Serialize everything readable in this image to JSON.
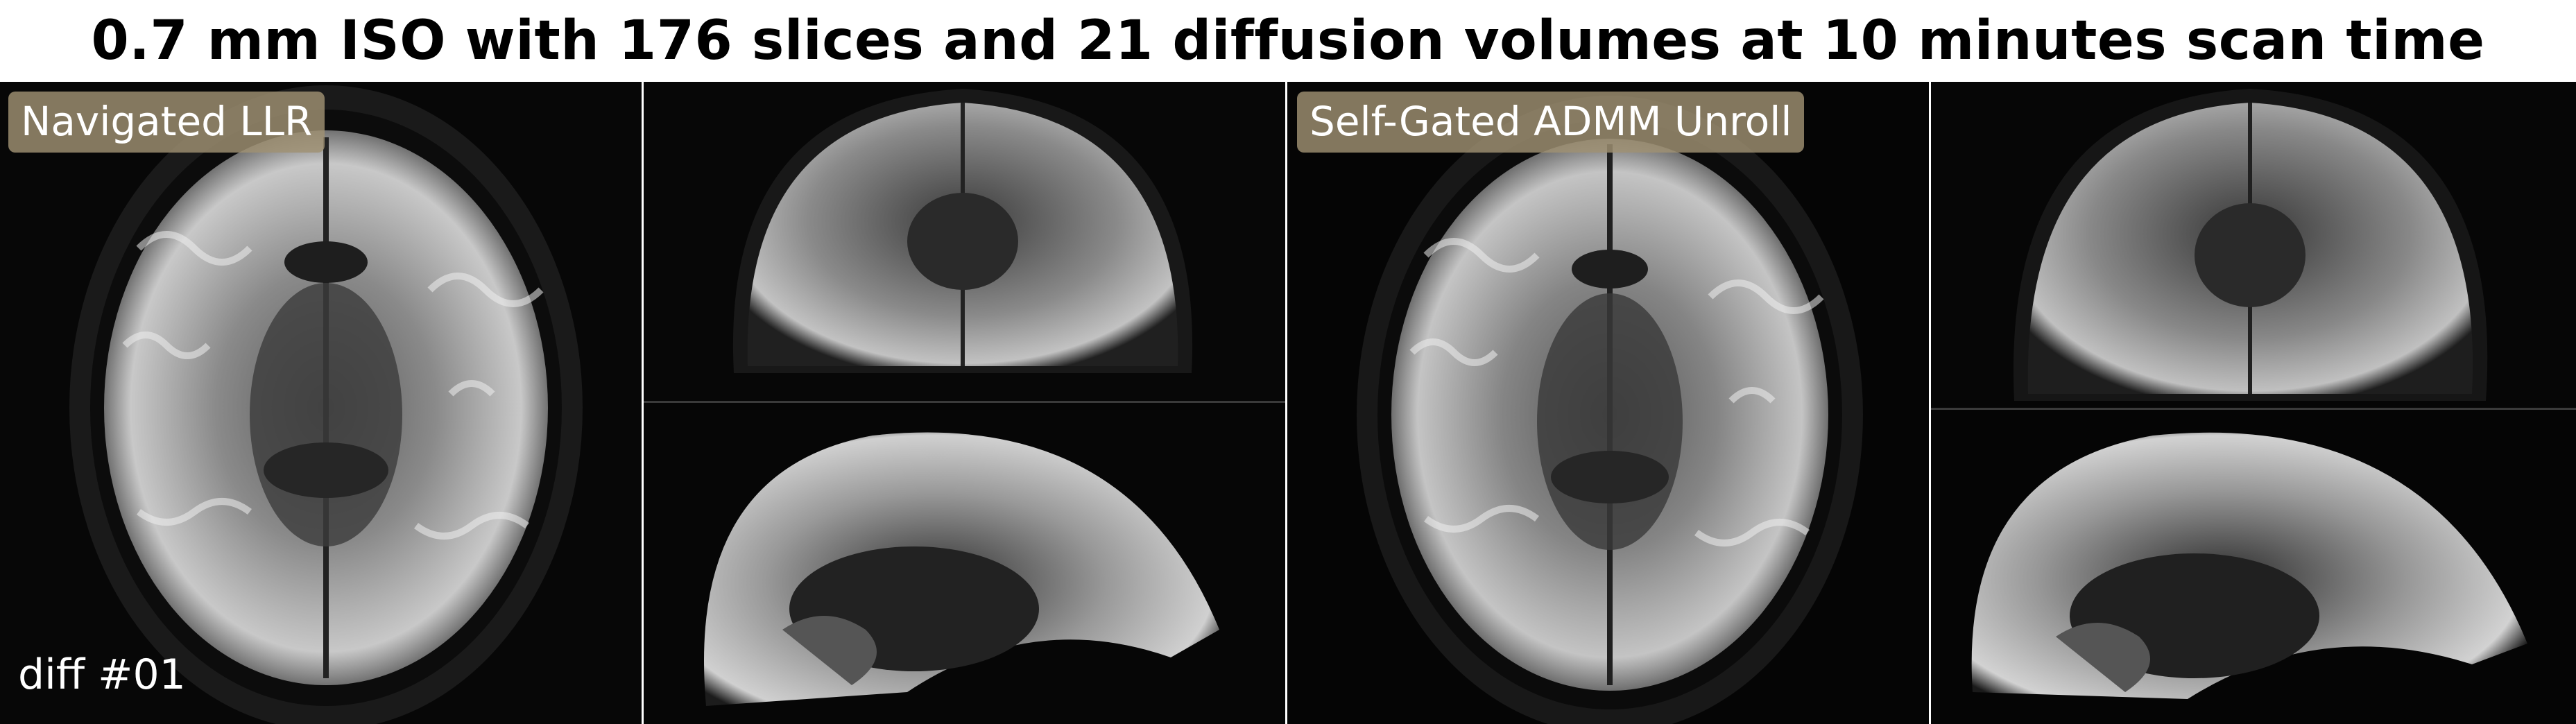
{
  "title": "0.7 mm ISO with 176 slices and 21 diffusion volumes at 10 minutes scan time",
  "methods": [
    {
      "label": "Navigated LLR"
    },
    {
      "label": "Self-Gated ADMM Unroll"
    }
  ],
  "volume_label": "diff #01",
  "views": [
    "axial",
    "coronal",
    "sagittal"
  ],
  "colors": {
    "background": "#000000",
    "label_box": "#a09173",
    "label_text": "#ffffff"
  }
}
